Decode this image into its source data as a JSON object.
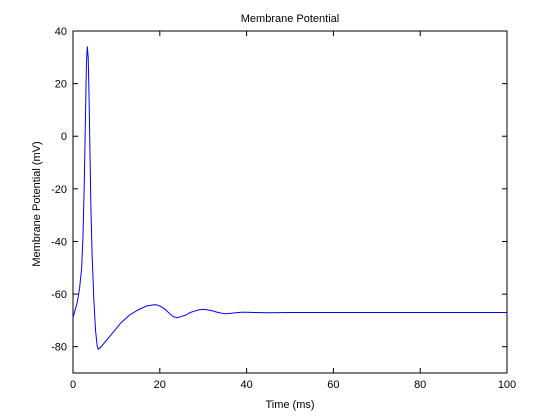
{
  "chart_data": {
    "type": "line",
    "title": "Membrane Potential",
    "xlabel": "Time (ms)",
    "ylabel": "Membrane Potential (mV)",
    "xlim": [
      0,
      100
    ],
    "ylim": [
      -90,
      40
    ],
    "xticks": [
      0,
      20,
      40,
      60,
      80,
      100
    ],
    "yticks": [
      -80,
      -60,
      -40,
      -20,
      0,
      20,
      40
    ],
    "xtick_labels": [
      "0",
      "20",
      "40",
      "60",
      "80",
      "100"
    ],
    "ytick_labels": [
      "-80",
      "-60",
      "-40",
      "-20",
      "0",
      "20",
      "40"
    ],
    "grid": false,
    "legend": "none",
    "series": [
      {
        "color": "#0000ff",
        "x": [
          0,
          0.5,
          1.0,
          1.5,
          2.0,
          2.3,
          2.6,
          2.9,
          3.1,
          3.3,
          3.5,
          3.7,
          3.9,
          4.1,
          4.4,
          4.8,
          5.2,
          5.6,
          5.8,
          6.5,
          7.5,
          9,
          11,
          13,
          15,
          17,
          19,
          20,
          21,
          22,
          23,
          24,
          25,
          26,
          27,
          28,
          29,
          30,
          31,
          32,
          33,
          34,
          35,
          36,
          37,
          38,
          39,
          40,
          42,
          45,
          50,
          55,
          60,
          70,
          80,
          90,
          100
        ],
        "values": [
          -69,
          -66,
          -63,
          -58,
          -50,
          -38,
          -18,
          10,
          28,
          34,
          30,
          15,
          -5,
          -25,
          -45,
          -62,
          -74,
          -80,
          -81,
          -80,
          -78,
          -75,
          -71,
          -68,
          -66,
          -64.5,
          -64,
          -64.5,
          -65.5,
          -67,
          -68.5,
          -69,
          -68.5,
          -68,
          -67,
          -66.5,
          -66,
          -65.8,
          -66,
          -66.3,
          -66.8,
          -67.2,
          -67.5,
          -67.4,
          -67.2,
          -67,
          -66.9,
          -66.9,
          -67,
          -67.1,
          -67.0,
          -67.0,
          -67.0,
          -67.0,
          -67.0,
          -67.0,
          -67.0
        ]
      }
    ]
  }
}
